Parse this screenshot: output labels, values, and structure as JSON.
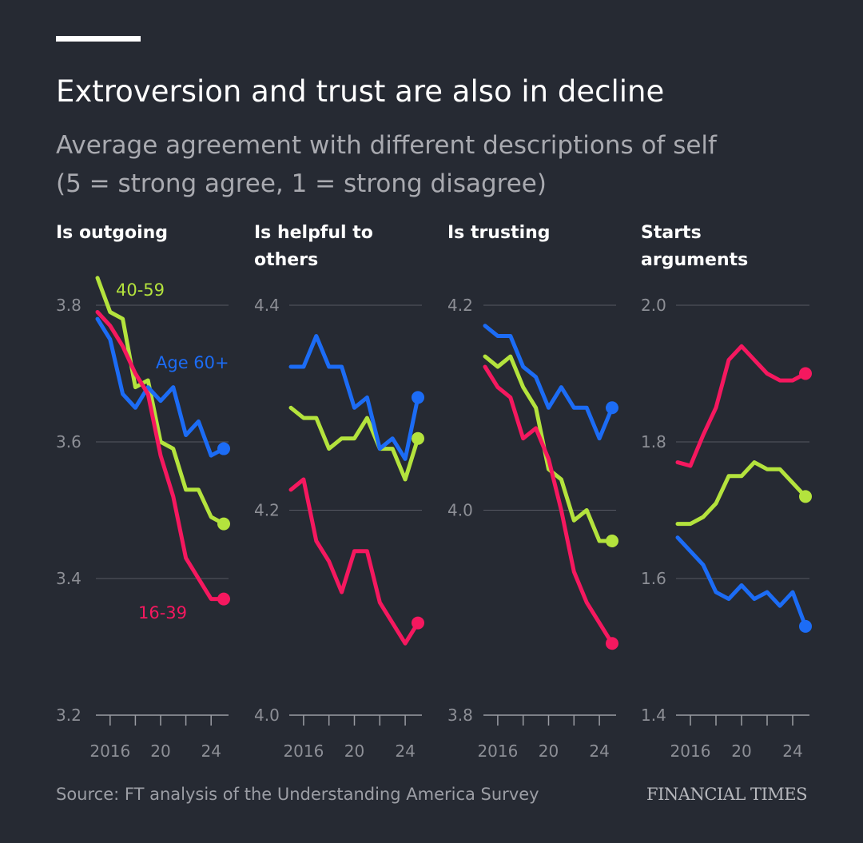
{
  "header": {
    "title": "Extroversion and trust are also in decline",
    "subtitle_line1": "Average agreement with different descriptions of self",
    "subtitle_line2": "(5 = strong agree, 1 = strong disagree)"
  },
  "footer": {
    "source": "Source: FT analysis of the Understanding America Survey",
    "brand": "FINANCIAL TIMES"
  },
  "colors": {
    "background": "#262a33",
    "age_16_39": "#f5185f",
    "age_40_59": "#b4e33d",
    "age_60_plus": "#1c6cf5",
    "grid": "#555862"
  },
  "chart_data": [
    {
      "type": "line",
      "title": "Is outgoing",
      "title_lines": [
        "Is outgoing"
      ],
      "x": [
        2015,
        2016,
        2017,
        2018,
        2019,
        2020,
        2021,
        2022,
        2023,
        2024,
        2025
      ],
      "xticks": [
        2016,
        2018,
        2020,
        2022,
        2024
      ],
      "xtick_labels": [
        "2016",
        "",
        "20",
        "",
        "24"
      ],
      "ylim": [
        3.2,
        3.8
      ],
      "yticks": [
        "3.2",
        "3.4",
        "3.6",
        "3.8"
      ],
      "yticks_values": [
        3.2,
        3.4,
        3.6,
        3.8
      ],
      "series_labels": {
        "16-39": "16-39",
        "40-59": "40-59",
        "60+": "Age 60+"
      },
      "series": [
        {
          "name": "16-39",
          "values": [
            3.79,
            3.77,
            3.74,
            3.7,
            3.67,
            3.58,
            3.52,
            3.43,
            3.4,
            3.37,
            3.37
          ]
        },
        {
          "name": "40-59",
          "values": [
            3.84,
            3.79,
            3.78,
            3.68,
            3.69,
            3.6,
            3.59,
            3.53,
            3.53,
            3.49,
            3.48
          ]
        },
        {
          "name": "60+",
          "values": [
            3.78,
            3.75,
            3.67,
            3.65,
            3.68,
            3.66,
            3.68,
            3.61,
            3.63,
            3.58,
            3.59
          ]
        }
      ]
    },
    {
      "type": "line",
      "title": "Is helpful to others",
      "title_lines": [
        "Is helpful to",
        "others"
      ],
      "x": [
        2015,
        2016,
        2017,
        2018,
        2019,
        2020,
        2021,
        2022,
        2023,
        2024,
        2025
      ],
      "xticks": [
        2016,
        2018,
        2020,
        2022,
        2024
      ],
      "xtick_labels": [
        "2016",
        "",
        "20",
        "",
        "24"
      ],
      "ylim": [
        4.0,
        4.4
      ],
      "yticks": [
        "4.0",
        "4.2",
        "4.4"
      ],
      "yticks_values": [
        4.0,
        4.2,
        4.4
      ],
      "series": [
        {
          "name": "16-39",
          "values": [
            4.22,
            4.23,
            4.17,
            4.15,
            4.12,
            4.16,
            4.16,
            4.11,
            4.09,
            4.07,
            4.09
          ]
        },
        {
          "name": "40-59",
          "values": [
            4.3,
            4.29,
            4.29,
            4.26,
            4.27,
            4.27,
            4.29,
            4.26,
            4.26,
            4.23,
            4.27
          ]
        },
        {
          "name": "60+",
          "values": [
            4.34,
            4.34,
            4.37,
            4.34,
            4.34,
            4.3,
            4.31,
            4.26,
            4.27,
            4.25,
            4.31
          ]
        }
      ]
    },
    {
      "type": "line",
      "title": "Is trusting",
      "title_lines": [
        "Is trusting"
      ],
      "x": [
        2015,
        2016,
        2017,
        2018,
        2019,
        2020,
        2021,
        2022,
        2023,
        2024,
        2025
      ],
      "xticks": [
        2016,
        2018,
        2020,
        2022,
        2024
      ],
      "xtick_labels": [
        "2016",
        "",
        "20",
        "",
        "24"
      ],
      "ylim": [
        3.8,
        4.2
      ],
      "yticks": [
        "3.8",
        "4.0",
        "4.2"
      ],
      "yticks_values": [
        3.8,
        4.0,
        4.2
      ],
      "series": [
        {
          "name": "16-39",
          "values": [
            4.14,
            4.12,
            4.11,
            4.07,
            4.08,
            4.05,
            4.0,
            3.94,
            3.91,
            3.89,
            3.87
          ]
        },
        {
          "name": "40-59",
          "values": [
            4.15,
            4.14,
            4.15,
            4.12,
            4.1,
            4.04,
            4.03,
            3.99,
            4.0,
            3.97,
            3.97
          ]
        },
        {
          "name": "60+",
          "values": [
            4.18,
            4.17,
            4.17,
            4.14,
            4.13,
            4.1,
            4.12,
            4.1,
            4.1,
            4.07,
            4.1
          ]
        }
      ]
    },
    {
      "type": "line",
      "title": "Starts arguments",
      "title_lines": [
        "Starts",
        "arguments"
      ],
      "x": [
        2015,
        2016,
        2017,
        2018,
        2019,
        2020,
        2021,
        2022,
        2023,
        2024,
        2025
      ],
      "xticks": [
        2016,
        2018,
        2020,
        2022,
        2024
      ],
      "xtick_labels": [
        "2016",
        "",
        "20",
        "",
        "24"
      ],
      "ylim": [
        1.4,
        2.0
      ],
      "yticks": [
        "1.4",
        "1.6",
        "1.8",
        "2.0"
      ],
      "yticks_values": [
        1.4,
        1.6,
        1.8,
        2.0
      ],
      "series": [
        {
          "name": "16-39",
          "values": [
            1.77,
            1.765,
            1.81,
            1.85,
            1.92,
            1.94,
            1.92,
            1.9,
            1.89,
            1.89,
            1.9
          ]
        },
        {
          "name": "40-59",
          "values": [
            1.68,
            1.68,
            1.69,
            1.71,
            1.75,
            1.75,
            1.77,
            1.76,
            1.76,
            1.74,
            1.72
          ]
        },
        {
          "name": "60+",
          "values": [
            1.66,
            1.64,
            1.62,
            1.58,
            1.57,
            1.59,
            1.57,
            1.58,
            1.56,
            1.58,
            1.53
          ]
        }
      ]
    }
  ]
}
